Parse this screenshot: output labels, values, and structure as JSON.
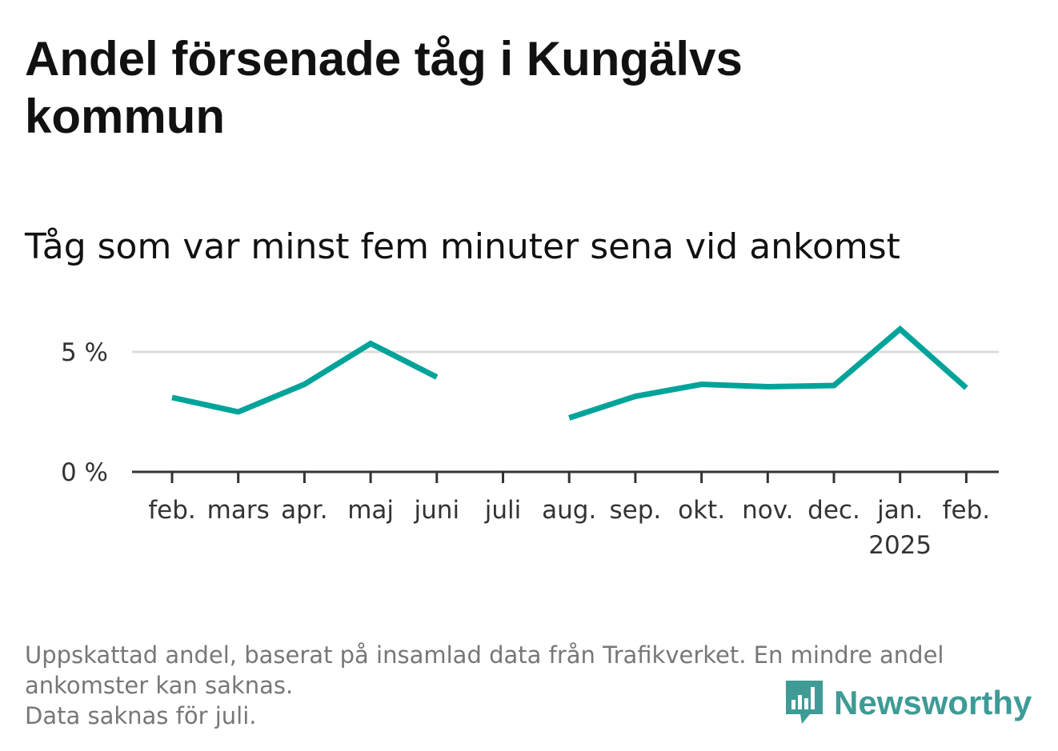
{
  "title": "Andel försenade tåg i Kungälvs kommun",
  "subtitle": "Tåg som var minst fem minuter sena vid ankomst",
  "footer": {
    "line1": "Uppskattad andel, baserat på insamlad data från Trafikverket. En mindre andel",
    "line2": "ankomster kan saknas.",
    "line3": "Data saknas för juli."
  },
  "logo": {
    "text": "Newsworthy",
    "icon": "newsworthy-logo-icon",
    "color": "#3e9b96"
  },
  "chart_data": {
    "type": "line",
    "categories": [
      "feb.",
      "mars",
      "apr.",
      "maj",
      "juni",
      "juli",
      "aug.",
      "sep.",
      "okt.",
      "nov.",
      "dec.",
      "jan.",
      "feb."
    ],
    "year_labels": [
      "",
      "",
      "",
      "",
      "",
      "",
      "",
      "",
      "",
      "",
      "",
      "2025",
      ""
    ],
    "series": [
      {
        "values": [
          3.1,
          2.5,
          3.65,
          5.35,
          3.95,
          null,
          2.25,
          3.15,
          3.65,
          3.55,
          3.6,
          5.95,
          3.5
        ],
        "color": "#00a39a"
      }
    ],
    "yticks": [
      {
        "value": 0,
        "label": "0 %"
      },
      {
        "value": 5,
        "label": "5 %"
      }
    ],
    "ylim": [
      0,
      6.5
    ],
    "grid": true,
    "xlabel": "",
    "ylabel": ""
  }
}
